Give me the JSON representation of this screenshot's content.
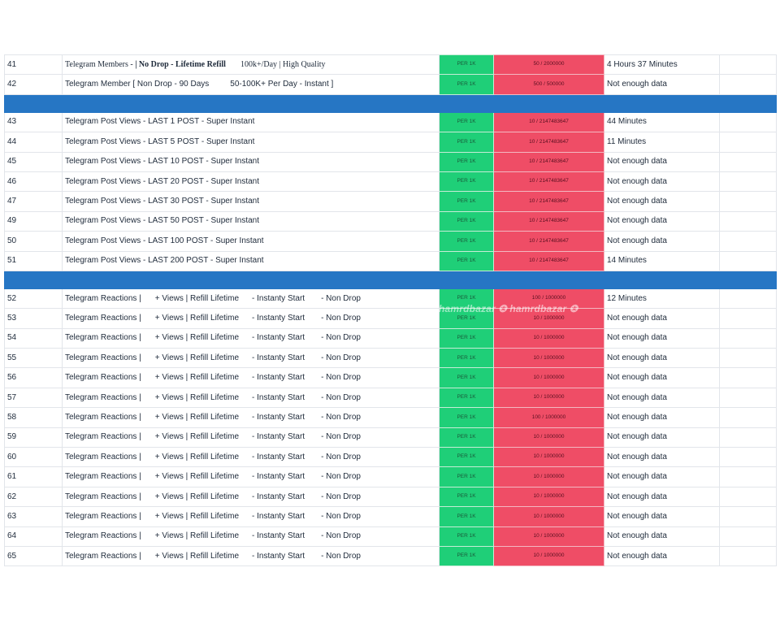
{
  "per_label": "PER 1K",
  "row_41": {
    "id": "41",
    "service_a": "Telegram Members - ",
    "service_b": "| No Drop - Lifetime Refill",
    "service_c": "100k+/Day | High Quality",
    "qty": "50 / 2000000",
    "time": "4 Hours 37 Minutes"
  },
  "row_42": {
    "id": "42",
    "service_a": "Telegram Member [ Non Drop - 90 Days",
    "service_c": "50-100K+ Per Day - Instant ]",
    "qty": "500 / 500000",
    "time": "Not enough data"
  },
  "post_views": [
    {
      "id": "43",
      "service": "Telegram Post Views - LAST 1 POST - Super Instant",
      "qty": "10 / 2147483647",
      "time": "44 Minutes"
    },
    {
      "id": "44",
      "service": "Telegram Post Views - LAST 5 POST - Super Instant",
      "qty": "10 / 2147483647",
      "time": "11 Minutes"
    },
    {
      "id": "45",
      "service": "Telegram Post Views - LAST 10 POST - Super Instant",
      "qty": "10 / 2147483647",
      "time": "Not enough data"
    },
    {
      "id": "46",
      "service": "Telegram Post Views - LAST 20 POST - Super Instant",
      "qty": "10 / 2147483647",
      "time": "Not enough data"
    },
    {
      "id": "47",
      "service": "Telegram Post Views - LAST 30 POST - Super Instant",
      "qty": "10 / 2147483647",
      "time": "Not enough data"
    },
    {
      "id": "49",
      "service": "Telegram Post Views - LAST 50 POST - Super Instant",
      "qty": "10 / 2147483647",
      "time": "Not enough data"
    },
    {
      "id": "50",
      "service": "Telegram Post Views - LAST 100 POST - Super Instant",
      "qty": "10 / 2147483647",
      "time": "Not enough data"
    },
    {
      "id": "51",
      "service": "Telegram Post Views - LAST 200 POST - Super Instant",
      "qty": "10 / 2147483647",
      "time": "14 Minutes"
    }
  ],
  "reaction_parts": {
    "a": "Telegram Reactions |",
    "b": "+ Views | Refill Lifetime",
    "c": "- Instanty Start",
    "d": "- Non Drop"
  },
  "reactions": [
    {
      "id": "52",
      "qty": "100 / 1000000",
      "time": "12 Minutes"
    },
    {
      "id": "53",
      "qty": "10 / 1000000",
      "time": "Not enough data"
    },
    {
      "id": "54",
      "qty": "10 / 1000000",
      "time": "Not enough data"
    },
    {
      "id": "55",
      "qty": "10 / 1000000",
      "time": "Not enough data"
    },
    {
      "id": "56",
      "qty": "10 / 1000000",
      "time": "Not enough data"
    },
    {
      "id": "57",
      "qty": "10 / 1000000",
      "time": "Not enough data"
    },
    {
      "id": "58",
      "qty": "100 / 1000000",
      "time": "Not enough data"
    },
    {
      "id": "59",
      "qty": "10 / 1000000",
      "time": "Not enough data"
    },
    {
      "id": "60",
      "qty": "10 / 1000000",
      "time": "Not enough data"
    },
    {
      "id": "61",
      "qty": "10 / 1000000",
      "time": "Not enough data"
    },
    {
      "id": "62",
      "qty": "10 / 1000000",
      "time": "Not enough data"
    },
    {
      "id": "63",
      "qty": "10 / 1000000",
      "time": "Not enough data"
    },
    {
      "id": "64",
      "qty": "10 / 1000000",
      "time": "Not enough data"
    },
    {
      "id": "65",
      "qty": "10 / 1000000",
      "time": "Not enough data"
    }
  ],
  "watermark": "hamrdbazar ✪ hamrdbazar ✪",
  "colors": {
    "per_bg": "#1fcf78",
    "qty_bg": "#ef4d66",
    "separator": "#2676c4"
  }
}
